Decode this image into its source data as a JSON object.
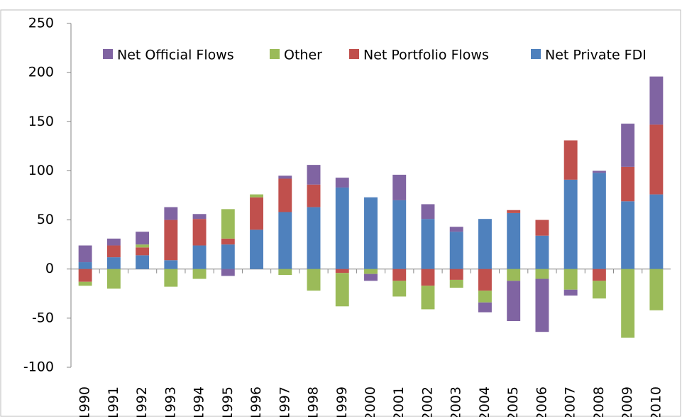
{
  "chart_data": {
    "type": "bar",
    "stacked": true,
    "categories": [
      "1990",
      "1991",
      "1992",
      "1993",
      "1994",
      "1995",
      "1996",
      "1997",
      "1998",
      "1999",
      "2000",
      "2001",
      "2002",
      "2003",
      "2004",
      "2005",
      "2006",
      "2007",
      "2008",
      "2009",
      "2010"
    ],
    "series": [
      {
        "name": "Net Private FDI",
        "color": "#4f81bd",
        "values": [
          7,
          12,
          14,
          9,
          24,
          25,
          40,
          58,
          63,
          83,
          73,
          70,
          51,
          38,
          51,
          57,
          34,
          91,
          98,
          69,
          76
        ]
      },
      {
        "name": "Net Portfolio Flows",
        "color": "#c0504d",
        "values": [
          -13,
          12,
          8,
          41,
          27,
          6,
          33,
          34,
          23,
          -4,
          0,
          -12,
          -17,
          -11,
          -22,
          3,
          16,
          40,
          -12,
          35,
          71
        ]
      },
      {
        "name": "Other",
        "color": "#9bbb59",
        "values": [
          -4,
          -20,
          3,
          -18,
          -10,
          30,
          3,
          -6,
          -22,
          -34,
          -5,
          -16,
          -24,
          -8,
          -12,
          -12,
          -10,
          -21,
          -18,
          -70,
          -42
        ]
      },
      {
        "name": "Net Official Flows",
        "color": "#8064a2",
        "values": [
          17,
          7,
          13,
          13,
          5,
          -7,
          0,
          3,
          20,
          10,
          -7,
          26,
          15,
          5,
          -10,
          -41,
          -54,
          -6,
          2,
          44,
          49
        ]
      }
    ],
    "ylim": [
      -100,
      250
    ],
    "yticks": [
      -100,
      -50,
      0,
      50,
      100,
      150,
      200,
      250
    ],
    "grid": false,
    "legend": "top"
  }
}
